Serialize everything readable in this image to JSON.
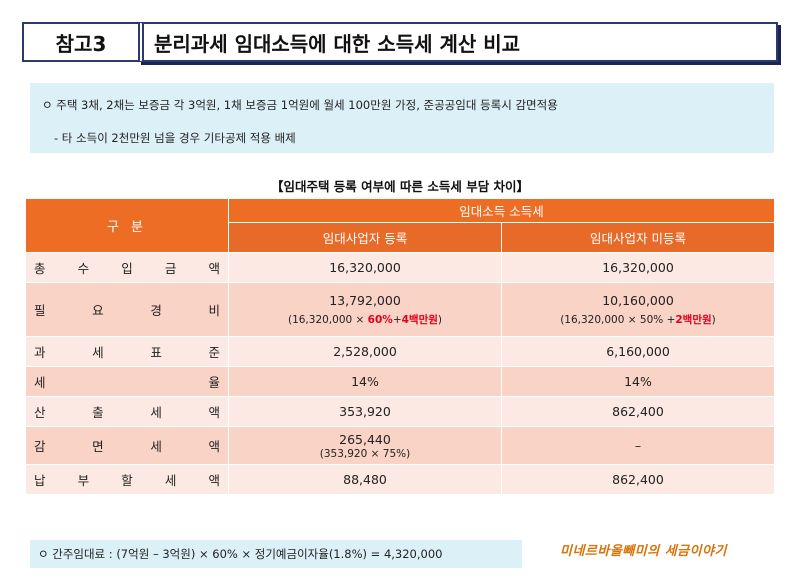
{
  "header": {
    "ref_label": "참고3",
    "title": "분리과세 임대소득에 대한 소득세 계산 비교"
  },
  "info": {
    "line1": "ㅇ 주택 3채, 2채는 보증금 각 3억원, 1채 보증금 1억원에 월세 100만원 가정, 준공공임대 등록시 감면적용",
    "line2": "- 타 소득이 2천만원 넘을 경우 기타공제 적용 배제"
  },
  "table_caption": "【임대주택 등록 여부에 따른 소득세 부담 차이】",
  "table": {
    "header_category": "구 분",
    "header_group": "임대소득 소득세",
    "header_registered": "임대사업자 등록",
    "header_unregistered": "임대사업자 미등록",
    "rows": [
      {
        "label": [
          "총",
          "수",
          "입",
          "금",
          "액"
        ],
        "registered": "16,320,000",
        "unregistered": "16,320,000"
      },
      {
        "label": [
          "필",
          "요",
          "경",
          "비"
        ],
        "registered": "13,792,000",
        "unregistered": "10,160,000",
        "registered_sub": {
          "pre": "(16,320,000 × ",
          "red1": "60%",
          "mid": "+",
          "red2": "4백만원",
          "post": ")"
        },
        "unregistered_sub": {
          "pre": "(16,320,000 × 50% +",
          "red1": "2백만원",
          "post": ")"
        }
      },
      {
        "label": [
          "과",
          "세",
          "표",
          "준"
        ],
        "registered": "2,528,000",
        "unregistered": "6,160,000"
      },
      {
        "label": [
          "세",
          "율"
        ],
        "registered": "14%",
        "unregistered": "14%"
      },
      {
        "label": [
          "산",
          "출",
          "세",
          "액"
        ],
        "registered": "353,920",
        "unregistered": "862,400"
      },
      {
        "label": [
          "감",
          "면",
          "세",
          "액"
        ],
        "registered": "265,440",
        "registered_note": "(353,920 × 75%)",
        "unregistered": "–"
      },
      {
        "label": [
          "납",
          "부",
          "할",
          "세",
          "액"
        ],
        "registered": "88,480",
        "unregistered": "862,400"
      }
    ]
  },
  "footer_note": "ㅇ 간주임대료 : (7억원 – 3억원) × 60% × 정기예금이자율(1.8%) = 4,320,000",
  "signature": "미네르바올빼미의 세금이야기",
  "colors": {
    "header_orange": "#ee6d25",
    "row_light": "#fde9e3",
    "row_dark": "#f9d3c6",
    "info_bg": "#dcf0f7",
    "highlight_red": "#e0001b"
  }
}
